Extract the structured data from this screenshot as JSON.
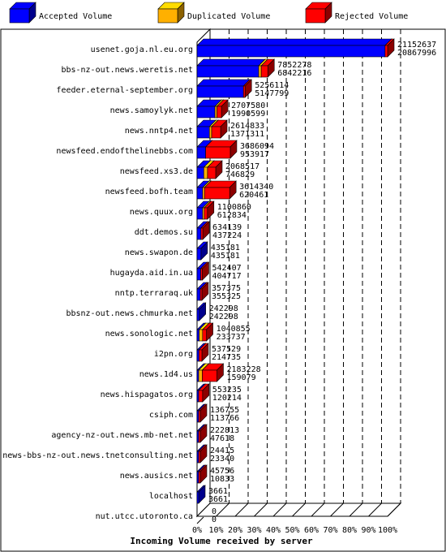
{
  "chart_data": {
    "type": "bar",
    "orientation": "horizontal",
    "stacked": true,
    "xlabel": "Incoming Volume received by server",
    "xlim": [
      0,
      100
    ],
    "x_tick_labels": [
      "0%",
      "10%",
      "20%",
      "30%",
      "40%",
      "50%",
      "60%",
      "70%",
      "80%",
      "90%",
      "100%"
    ],
    "grid": true,
    "legend_position": "top",
    "series": [
      {
        "name": "Accepted Volume",
        "color": "#0000ff"
      },
      {
        "name": "Duplicated Volume",
        "color": "#ffb000"
      },
      {
        "name": "Rejected Volume",
        "color": "#ff0000"
      }
    ],
    "categories": [
      "usenet.goja.nl.eu.org",
      "bbs-nz-out.news.weretis.net",
      "feeder.eternal-september.org",
      "news.samoylyk.net",
      "news.nntp4.net",
      "newsfeed.endofthelinebbs.com",
      "newsfeed.xs3.de",
      "newsfeed.bofh.team",
      "news.quux.org",
      "ddt.demos.su",
      "news.swapon.de",
      "hugayda.aid.in.ua",
      "nntp.terraraq.uk",
      "bbsnz-out.news.chmurka.net",
      "news.sonologic.net",
      "i2pn.org",
      "news.1d4.us",
      "news.hispagatos.org",
      "csiph.com",
      "agency-nz-out.news.mb-net.net",
      "news-bbs-nz-out.news.tnetconsulting.net",
      "news.ausics.net",
      "localhost",
      "nut.utcc.utoronto.ca"
    ],
    "total_volume": [
      21152637,
      7852278,
      5256114,
      2707580,
      2614833,
      3686094,
      2068517,
      3614340,
      1100860,
      634139,
      435181,
      542407,
      357375,
      242298,
      1040855,
      537529,
      2183228,
      553235,
      136755,
      222813,
      24415,
      45756,
      3661,
      0
    ],
    "accepted_volume": [
      20867996,
      6842216,
      5147799,
      1990599,
      1371311,
      953917,
      746829,
      620461,
      612834,
      437224,
      435181,
      404717,
      355325,
      242298,
      233737,
      214735,
      159079,
      120214,
      113766,
      47618,
      23340,
      10833,
      3661,
      0
    ],
    "duplicated_volume": [
      0,
      280000,
      0,
      220000,
      250000,
      0,
      420000,
      210000,
      130000,
      0,
      0,
      0,
      0,
      0,
      380000,
      0,
      400000,
      0,
      0,
      0,
      0,
      0,
      0,
      0
    ]
  }
}
